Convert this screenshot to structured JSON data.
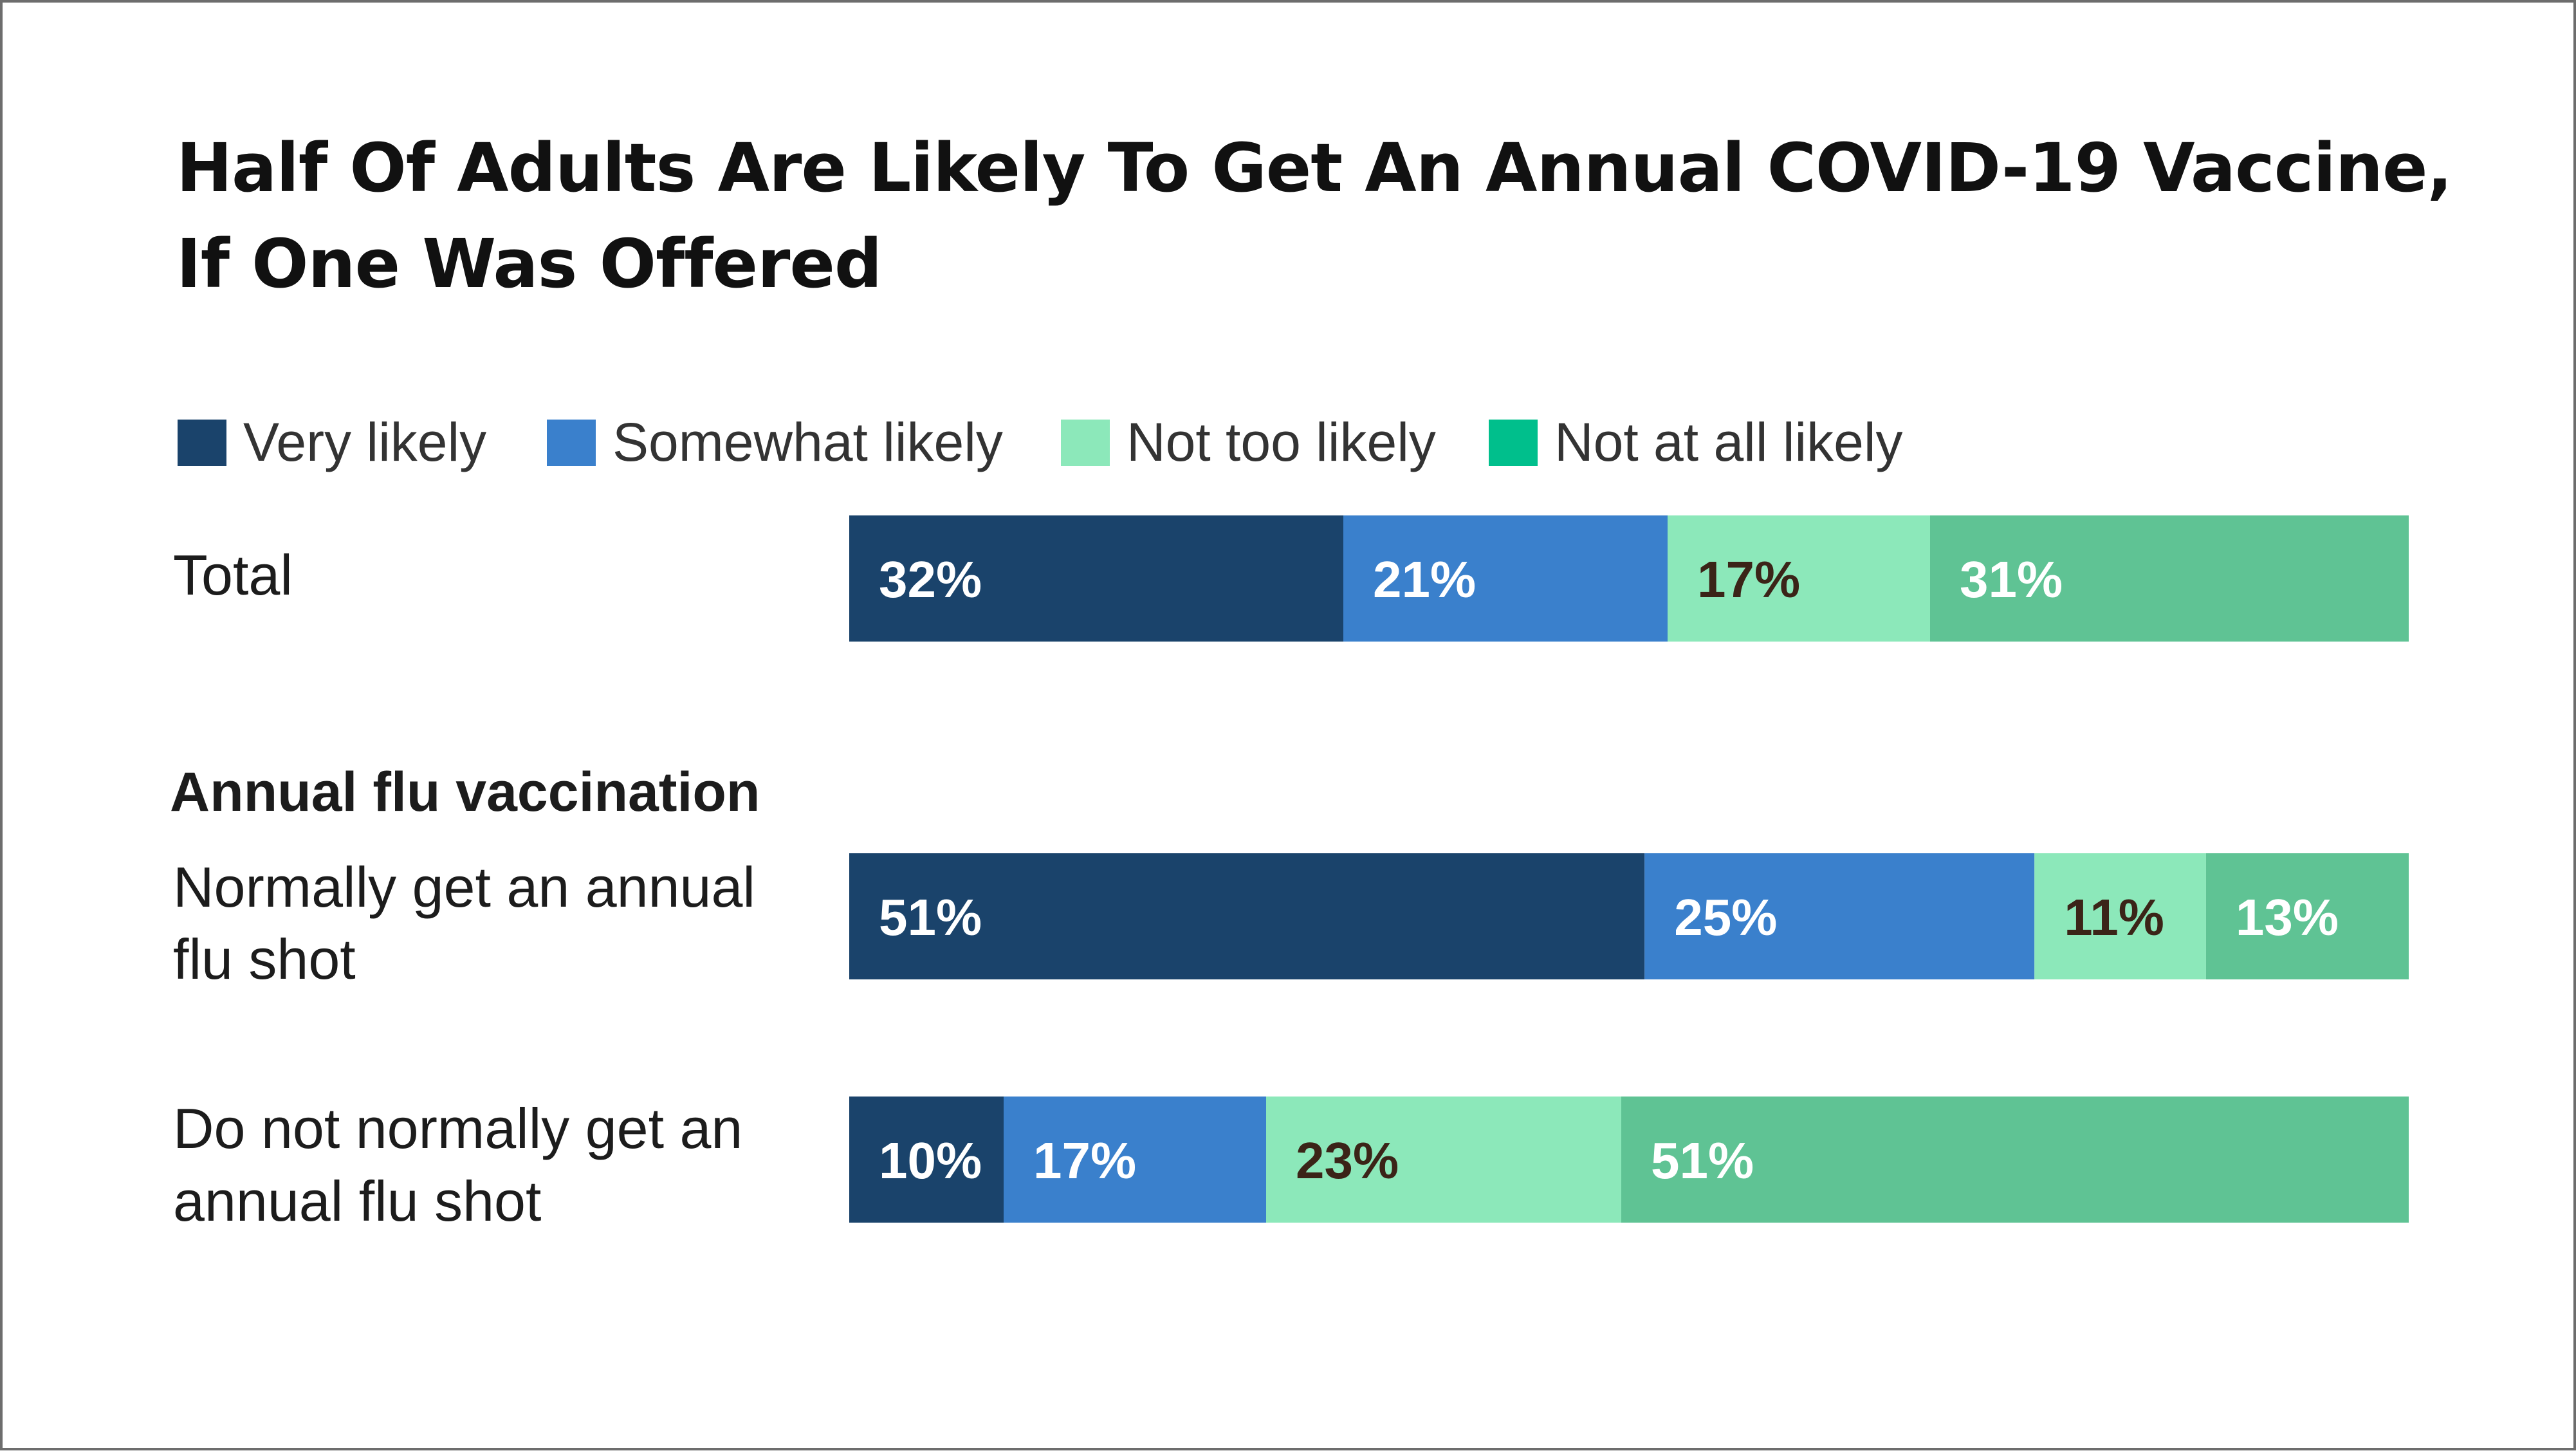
{
  "chart_data": {
    "type": "bar",
    "orientation": "horizontal",
    "stacked": true,
    "title_lines": [
      "Half Of Adults Are Likely To Get An Annual COVID-19 Vaccine,",
      "If One Was Offered"
    ],
    "legend_position": "top-left",
    "series": [
      {
        "name": "Very likely",
        "color": "#1a436b",
        "label_color": "#ffffff"
      },
      {
        "name": "Somewhat likely",
        "color": "#3a80cc",
        "label_color": "#ffffff"
      },
      {
        "name": "Not too likely",
        "color": "#8ce8ba",
        "label_color": "#3b2418"
      },
      {
        "name": "Not at all likely",
        "color": "#5fc394",
        "label_color": "#ffffff"
      }
    ],
    "legend_swatch_colors": [
      "#1a436b",
      "#3a80cc",
      "#8ce8ba",
      "#00bf8c"
    ],
    "group_label": "Annual flu vaccination",
    "rows": [
      {
        "label_lines": [
          "Total"
        ],
        "values": [
          32,
          21,
          17,
          31
        ],
        "labels": [
          "32%",
          "21%",
          "17%",
          "31%"
        ]
      },
      {
        "label_lines": [
          "Normally get an annual",
          "flu shot"
        ],
        "values": [
          51,
          25,
          11,
          13
        ],
        "labels": [
          "51%",
          "25%",
          "11%",
          "13%"
        ]
      },
      {
        "label_lines": [
          "Do not normally get an",
          "annual flu shot"
        ],
        "values": [
          10,
          17,
          23,
          51
        ],
        "labels": [
          "10%",
          "17%",
          "23%",
          "51%"
        ]
      }
    ]
  }
}
